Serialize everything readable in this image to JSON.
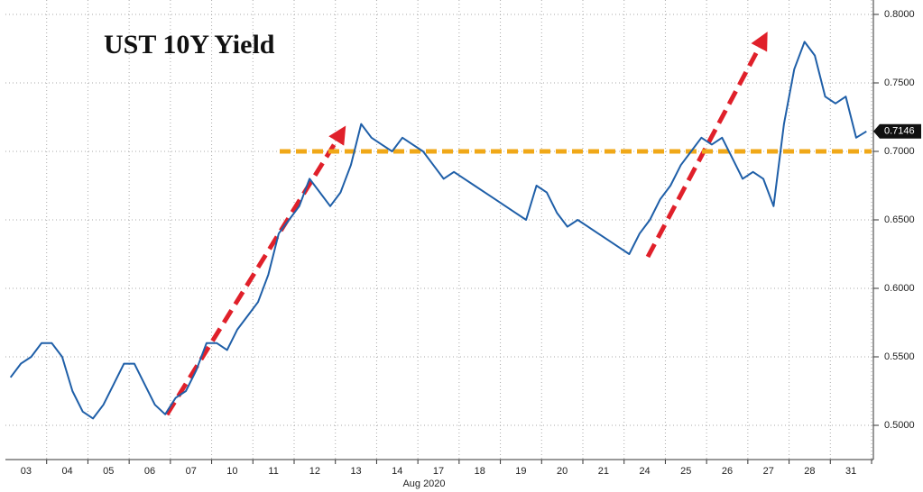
{
  "chart_data": {
    "type": "line",
    "title": "UST 10Y Yield",
    "x_axis_label": "Aug 2020",
    "categories": [
      "03",
      null,
      null,
      null,
      "04",
      null,
      null,
      null,
      "05",
      null,
      null,
      null,
      "06",
      null,
      null,
      null,
      "07",
      null,
      null,
      null,
      "10",
      null,
      null,
      null,
      "11",
      null,
      null,
      null,
      "12",
      null,
      null,
      null,
      "13",
      null,
      null,
      null,
      "14",
      null,
      null,
      null,
      "17",
      null,
      null,
      null,
      "18",
      null,
      null,
      null,
      "19",
      null,
      null,
      null,
      "20",
      null,
      null,
      null,
      "21",
      null,
      null,
      null,
      "24",
      null,
      null,
      null,
      "25",
      null,
      null,
      null,
      "26",
      null,
      null,
      null,
      "27",
      null,
      null,
      null,
      "28",
      null,
      null,
      null,
      "31",
      null,
      null,
      null
    ],
    "series": [
      {
        "color": "#1f5fa8",
        "values": [
          0.535,
          0.545,
          0.55,
          0.56,
          0.56,
          0.55,
          0.525,
          0.51,
          0.505,
          0.515,
          0.53,
          0.545,
          0.545,
          0.53,
          0.515,
          0.508,
          0.52,
          0.525,
          0.54,
          0.56,
          0.56,
          0.555,
          0.57,
          0.58,
          0.59,
          0.61,
          0.64,
          0.65,
          0.66,
          0.68,
          0.67,
          0.66,
          0.67,
          0.69,
          0.72,
          0.71,
          0.705,
          0.7,
          0.71,
          0.705,
          0.7,
          0.69,
          0.68,
          0.685,
          0.68,
          0.675,
          0.67,
          0.665,
          0.66,
          0.655,
          0.65,
          0.675,
          0.67,
          0.655,
          0.645,
          0.65,
          0.645,
          0.64,
          0.635,
          0.63,
          0.625,
          0.64,
          0.65,
          0.665,
          0.675,
          0.69,
          0.7,
          0.71,
          0.705,
          0.71,
          0.695,
          0.68,
          0.685,
          0.68,
          0.66,
          0.72,
          0.76,
          0.78,
          0.77,
          0.74,
          0.735,
          0.74,
          0.71,
          0.7146
        ]
      }
    ],
    "last_value_label": "0.7146",
    "reference_line": {
      "value": 0.7,
      "color": "#f0a818"
    },
    "ylim": [
      0.49,
      0.81
    ],
    "yticks": [
      {
        "value": 0.5,
        "label": "0.5000"
      },
      {
        "value": 0.55,
        "label": "0.5500"
      },
      {
        "value": 0.6,
        "label": "0.6000"
      },
      {
        "value": 0.65,
        "label": "0.6500"
      },
      {
        "value": 0.7,
        "label": "0.7000"
      },
      {
        "value": 0.75,
        "label": "0.7500"
      },
      {
        "value": 0.8,
        "label": "0.8000"
      }
    ],
    "grid": true
  }
}
